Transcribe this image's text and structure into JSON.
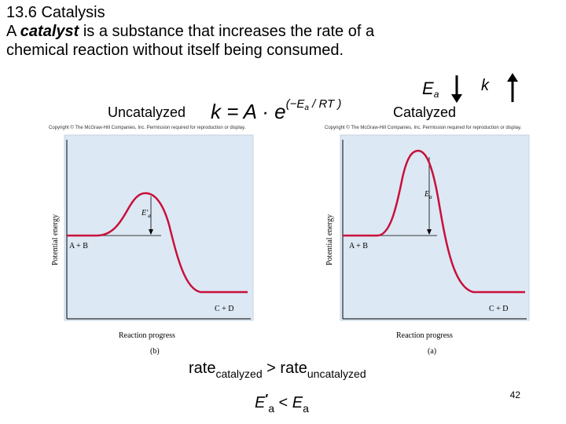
{
  "slide": {
    "heading": "13.6 Catalysis",
    "definition_prefix": "A ",
    "definition_term": "catalyst",
    "definition_suffix": " is a substance that increases the rate of a",
    "definition_line3": "chemical reaction without itself being consumed.",
    "page_number": "42"
  },
  "labels": {
    "uncatalyzed": "Uncatalyzed",
    "catalyzed": "Catalyzed",
    "ea": "E",
    "ea_sub": "a",
    "k": "k"
  },
  "equation": {
    "lhs": "k = A · e",
    "exponent": "(−E",
    "exponent_sub": "a",
    "exponent_tail": " / RT )"
  },
  "copyright": "Copyright © The McGraw-Hill Companies, Inc. Permission required for reproduction or display.",
  "panels": {
    "left": {
      "y_axis": "Potential energy",
      "x_axis": "Reaction progress",
      "tag": "(b)",
      "reactants": "A + B",
      "products": "C + D",
      "barrier": "E′",
      "barrier_sub": "a"
    },
    "right": {
      "y_axis": "Potential energy",
      "x_axis": "Reaction progress",
      "tag": "(a)",
      "reactants": "A + B",
      "products": "C + D",
      "barrier": "E",
      "barrier_sub": "a"
    }
  },
  "rate_compare": {
    "rate1": "rate",
    "rate1_sub": "catalyzed",
    "op": " > ",
    "rate2": "rate",
    "rate2_sub": "uncatalyzed"
  },
  "ea_compare": {
    "lhs": "E",
    "lhs_prime": "′",
    "lhs_sub": "a",
    "op": "< ",
    "rhs": "E",
    "rhs_sub": "a"
  },
  "colors": {
    "panel_fill": "#dce8f4",
    "curve": "#c8103a"
  }
}
